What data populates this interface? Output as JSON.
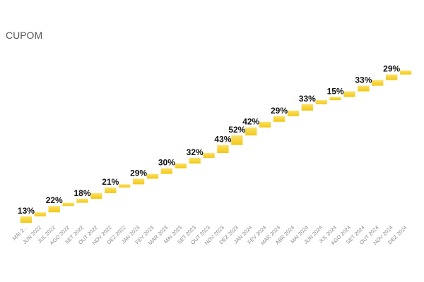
{
  "chart_data": {
    "type": "waterfall",
    "title": "CUPOM",
    "categories": [
      "MAI 2...",
      "JUN 2022",
      "JUL 2022",
      "AGO 2022",
      "SET 2022",
      "OUT 2022",
      "NOV 2022",
      "DEZ 2022",
      "JAN 2023",
      "FEV 2023",
      "MAR 2023",
      "MAI 2023",
      "SET 2023",
      "OUT 2023",
      "NOV 2023",
      "DEZ 2023",
      "JAN 2024",
      "FEV 2024",
      "MAR 2024",
      "ABR 2024",
      "MAI 2024",
      "JUN 2024",
      "JUL 2024",
      "AGO 2024",
      "SET 2024",
      "OUT 2024",
      "NOV 2024",
      "DEZ 2024"
    ],
    "data_labels": [
      "13%",
      "",
      "22%",
      "",
      "18%",
      "",
      "21%",
      "",
      "29%",
      "",
      "30%",
      "",
      "32%",
      "",
      "43%",
      "52%",
      "42%",
      "",
      "29%",
      "",
      "33%",
      "",
      "15%",
      "",
      "33%",
      "",
      "29%",
      ""
    ],
    "steps": [
      8,
      5,
      8,
      4,
      5,
      7,
      7,
      4,
      7,
      6,
      7,
      6,
      7,
      6,
      10,
      12,
      10,
      7,
      7,
      7,
      8,
      5,
      4,
      7,
      7,
      7,
      7,
      5
    ],
    "bar_color": "#F2C811",
    "bar_highlight": "#FBE16A"
  }
}
